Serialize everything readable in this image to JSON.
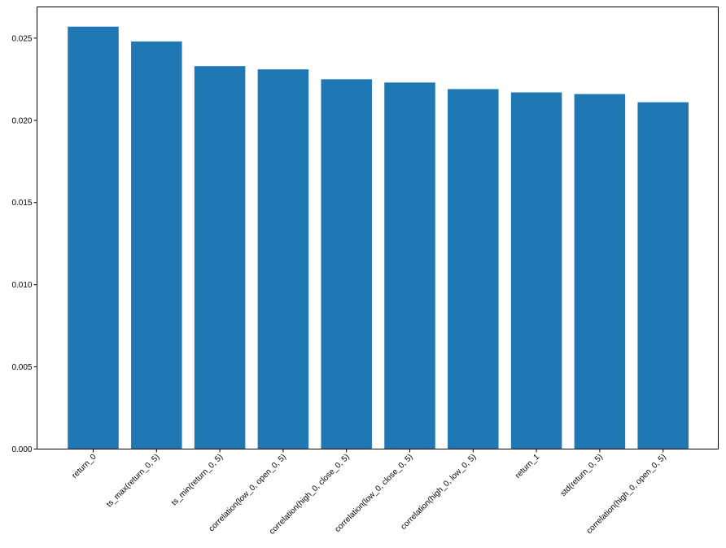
{
  "chart_data": {
    "type": "bar",
    "title": "",
    "xlabel": "",
    "ylabel": "",
    "categories": [
      "return_0",
      "ts_max(return_0, 5)",
      "ts_min(return_0, 5)",
      "correlation(low_0, open_0, 5)",
      "correlation(high_0, close_0, 5)",
      "correlation(low_0, close_0, 5)",
      "correlation(high_0, low_0, 5)",
      "return_1",
      "std(return_0, 5)",
      "correlation(high_0, open_0, 5)"
    ],
    "values": [
      0.0257,
      0.0248,
      0.0233,
      0.0231,
      0.0225,
      0.0223,
      0.0219,
      0.0217,
      0.0216,
      0.0211
    ],
    "ylim": [
      0,
      0.0269
    ],
    "yticks": [
      0.0,
      0.005,
      0.01,
      0.015,
      0.02,
      0.025
    ],
    "ytick_labels": [
      "0.000",
      "0.005",
      "0.010",
      "0.015",
      "0.020",
      "0.025"
    ],
    "grid": false,
    "legend": "none",
    "bar_color": "#1f77b4"
  }
}
